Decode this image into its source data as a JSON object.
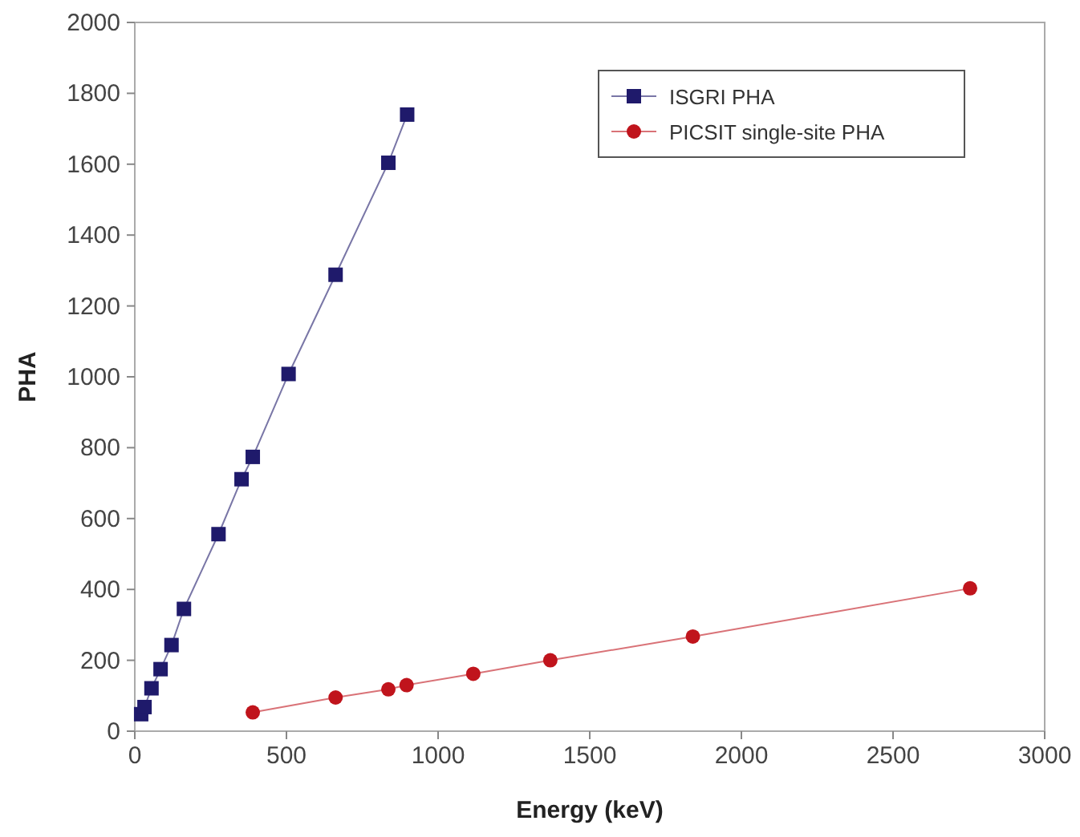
{
  "chart_data": {
    "type": "line",
    "xlabel": "Energy (keV)",
    "ylabel": "PHA",
    "xlim": [
      0,
      3000
    ],
    "ylim": [
      0,
      2000
    ],
    "xticks": [
      0,
      500,
      1000,
      1500,
      2000,
      2500,
      3000
    ],
    "yticks": [
      0,
      200,
      400,
      600,
      800,
      1000,
      1200,
      1400,
      1600,
      1800,
      2000
    ],
    "grid": false,
    "legend": "top right",
    "line_style": "solid",
    "series": [
      {
        "name": "ISGRI PHA",
        "color": "#1f1a6b",
        "marker": "square",
        "x": [
          21,
          32,
          55,
          85,
          121,
          162,
          276,
          352,
          389,
          507,
          662,
          836,
          898
        ],
        "values": [
          48,
          68,
          121,
          175,
          243,
          345,
          556,
          711,
          774,
          1008,
          1288,
          1604,
          1740
        ]
      },
      {
        "name": "PICSIT single-site PHA",
        "color": "#c0141c",
        "marker": "circle",
        "x": [
          389,
          662,
          836,
          896,
          1116,
          1370,
          1840,
          2754
        ],
        "values": [
          53,
          95,
          118,
          130,
          162,
          200,
          267,
          403
        ]
      }
    ]
  }
}
